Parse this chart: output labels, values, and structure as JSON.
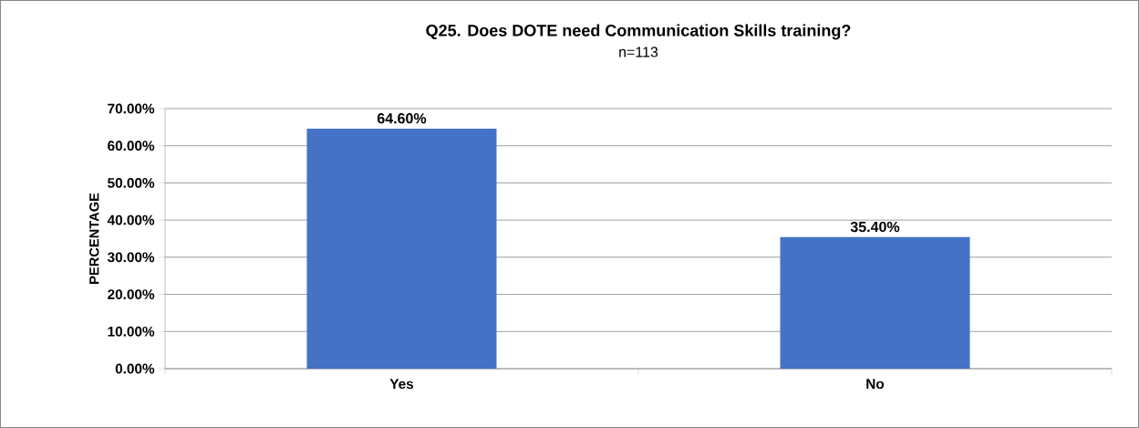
{
  "chart_data": {
    "type": "bar",
    "title": "Q25. Does DOTE need Communication Skills training?",
    "subtitle": "n=113",
    "ylabel": "PERCENTAGE",
    "categories": [
      "Yes",
      "No"
    ],
    "values": [
      64.6,
      35.4
    ],
    "color": "#4472c4",
    "value_labels": [
      "64.60%",
      "35.40%"
    ],
    "ylim": [
      0,
      70
    ],
    "yticks": [
      {
        "value": 0,
        "label": "0.00%"
      },
      {
        "value": 10,
        "label": "10.00%"
      },
      {
        "value": 20,
        "label": "20.00%"
      },
      {
        "value": 30,
        "label": "30.00%"
      },
      {
        "value": 40,
        "label": "40.00%"
      },
      {
        "value": 50,
        "label": "50.00%"
      },
      {
        "value": 60,
        "label": "60.00%"
      },
      {
        "value": 70,
        "label": "70.00%"
      }
    ],
    "grid": "y"
  }
}
